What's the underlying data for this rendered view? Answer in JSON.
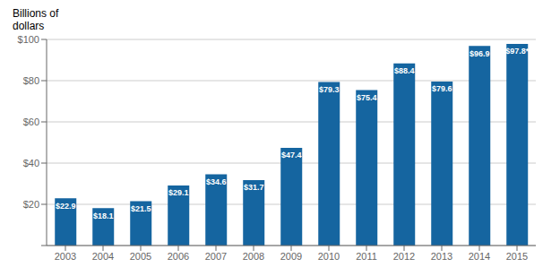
{
  "chart_data": {
    "type": "bar",
    "ylabel": "Billions of\ndollars",
    "categories": [
      "2003",
      "2004",
      "2005",
      "2006",
      "2007",
      "2008",
      "2009",
      "2010",
      "2011",
      "2012",
      "2013",
      "2014",
      "2015"
    ],
    "values": [
      22.9,
      18.1,
      21.5,
      29.1,
      34.6,
      31.7,
      47.4,
      79.3,
      75.4,
      88.4,
      79.6,
      96.9,
      97.8
    ],
    "value_labels": [
      "$22.9",
      "$18.1",
      "$21.5",
      "$29.1",
      "$34.6",
      "$31.7",
      "$47.4",
      "$79.3",
      "$75.4",
      "$88.4",
      "$79.6",
      "$96.9",
      "$97.8*"
    ],
    "data_labels": true,
    "color": "#1565A0",
    "ylim": [
      0,
      100
    ],
    "yticks": [
      {
        "value": 0,
        "label": ""
      },
      {
        "value": 20,
        "label": "$20"
      },
      {
        "value": 40,
        "label": "$40"
      },
      {
        "value": 60,
        "label": "$60"
      },
      {
        "value": 80,
        "label": "$80"
      },
      {
        "value": 100,
        "label": "$100"
      }
    ],
    "grid": true
  }
}
